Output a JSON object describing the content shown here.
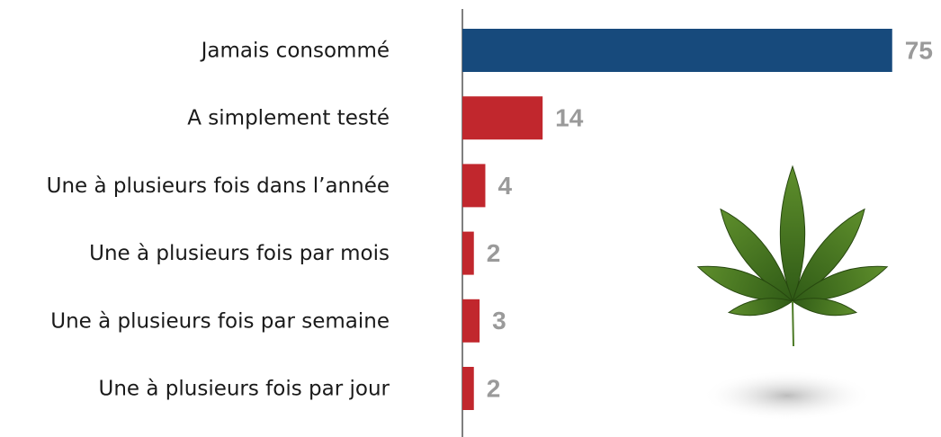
{
  "chart_data": {
    "type": "bar",
    "orientation": "horizontal",
    "categories": [
      "Jamais consommé",
      "A simplement testé",
      "Une à plusieurs fois dans l’année",
      "Une à plusieurs fois par mois",
      "Une à plusieurs fois par semaine",
      "Une à plusieurs fois par jour"
    ],
    "values": [
      75,
      14,
      4,
      2,
      3,
      2
    ],
    "colors": [
      "#174a7c",
      "#c1272d",
      "#c1272d",
      "#c1272d",
      "#c1272d",
      "#c1272d"
    ],
    "value_label_color": "#9a9a9a"
  }
}
